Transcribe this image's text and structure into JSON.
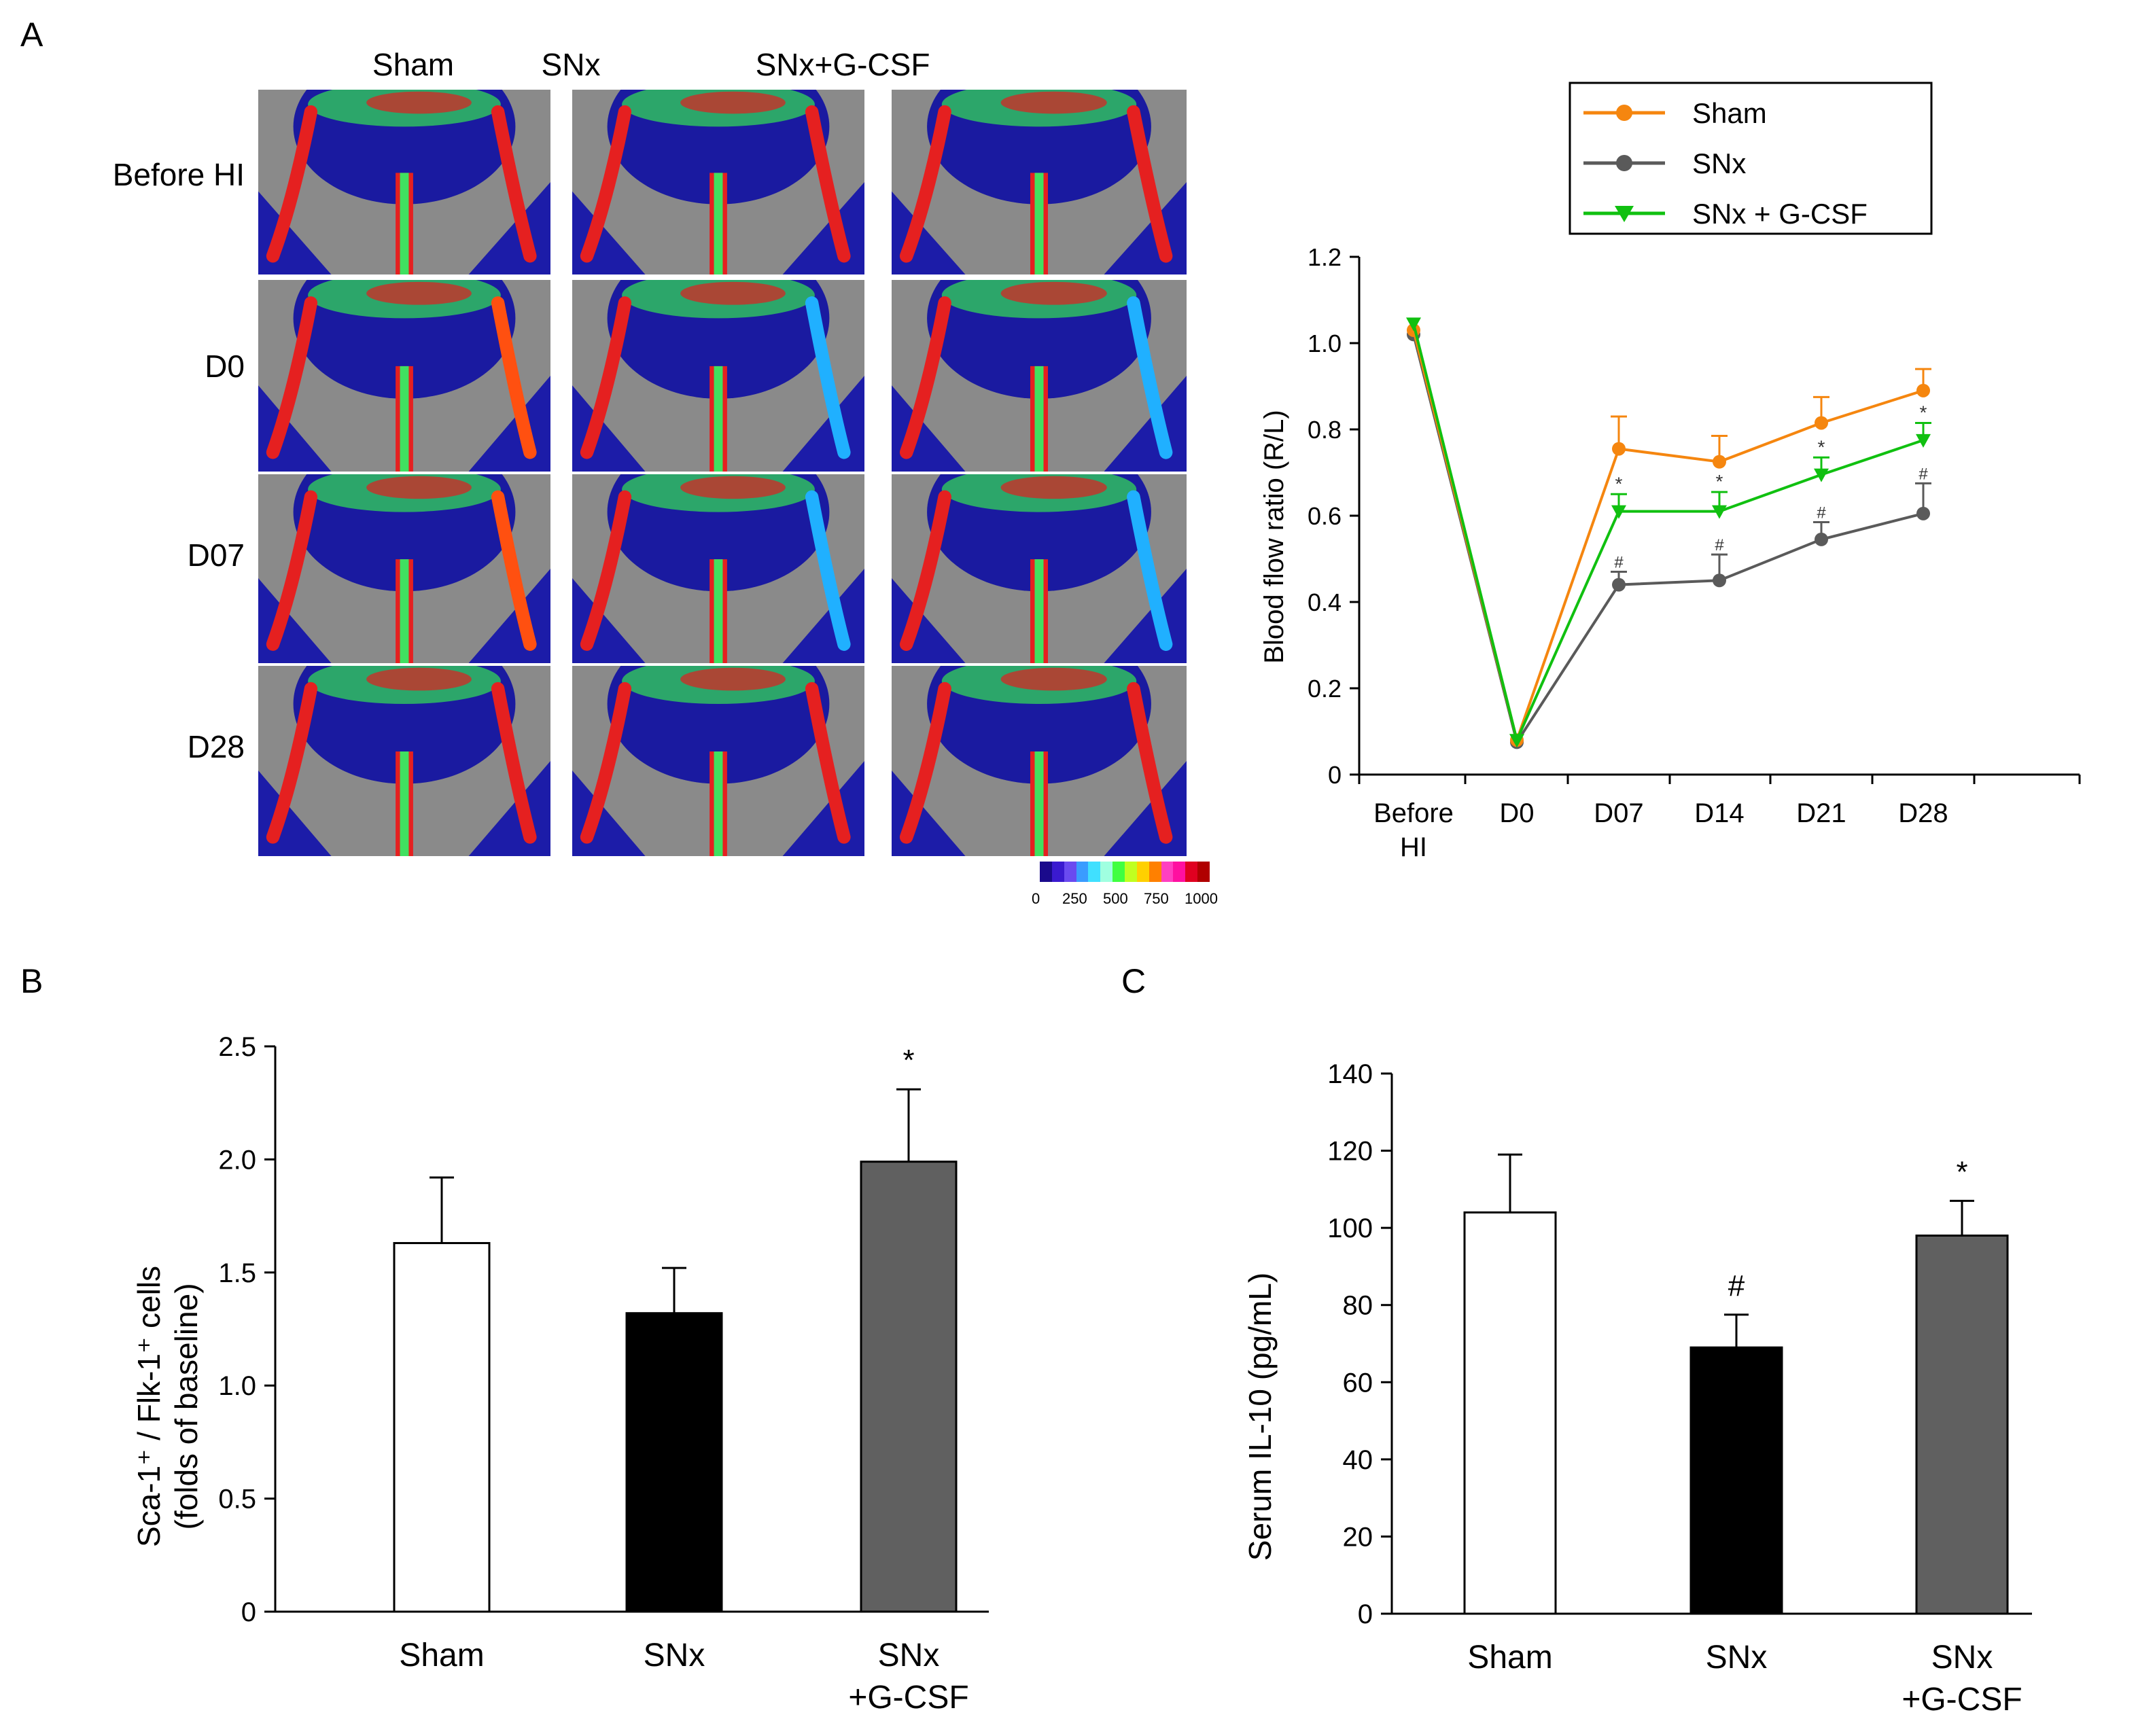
{
  "panels": {
    "a": "A",
    "b": "B",
    "c": "C"
  },
  "panel_a": {
    "columns": [
      "Sham",
      "SNx",
      "SNx+G-CSF"
    ],
    "rows": [
      "Before HI",
      "D0",
      "D07",
      "D28"
    ],
    "colorbar": {
      "ticks": [
        "0",
        "250",
        "500",
        "750",
        "1000"
      ],
      "colors": [
        "#1a0a8c",
        "#3a1ad0",
        "#6a4af0",
        "#3a9cff",
        "#40e0ff",
        "#a0ffe0",
        "#40ff40",
        "#c0ff20",
        "#ffd000",
        "#ff8000",
        "#ff40c0",
        "#ff10a0",
        "#e00020",
        "#b00000"
      ]
    }
  },
  "colors": {
    "sham": "#f5860f",
    "snx": "#5a5a5a",
    "gcsf": "#10c010",
    "bar_snx": "#000000",
    "bar_gcsf": "#606060"
  },
  "chart_data": [
    {
      "type": "line",
      "ylabel": "Blood flow ratio (R/L)",
      "categories": [
        "Before HI",
        "D0",
        "D07",
        "D14",
        "D21",
        "D28"
      ],
      "ylim": [
        0,
        1.2
      ],
      "yticks": [
        "0",
        "0.2",
        "0.4",
        "0.6",
        "0.8",
        "1.0",
        "1.2"
      ],
      "legend": [
        "Sham",
        "SNx",
        "SNx + G-CSF"
      ],
      "legend_position": "top",
      "series": [
        {
          "name": "Sham",
          "values": [
            1.03,
            0.08,
            0.755,
            0.725,
            0.815,
            0.89
          ],
          "err": [
            0,
            0,
            0.075,
            0.06,
            0.06,
            0.05
          ],
          "marks": [
            "",
            "",
            "",
            "",
            "",
            ""
          ]
        },
        {
          "name": "SNx",
          "values": [
            1.02,
            0.075,
            0.44,
            0.45,
            0.545,
            0.605
          ],
          "err": [
            0,
            0,
            0.03,
            0.06,
            0.04,
            0.07
          ],
          "marks": [
            "",
            "",
            "#",
            "#",
            "#",
            "#"
          ]
        },
        {
          "name": "SNx + G-CSF",
          "values": [
            1.045,
            0.08,
            0.61,
            0.61,
            0.695,
            0.775
          ],
          "err": [
            0,
            0,
            0.04,
            0.045,
            0.04,
            0.04
          ],
          "marks": [
            "",
            "",
            "*",
            "*",
            "*",
            "*"
          ]
        }
      ]
    },
    {
      "type": "bar",
      "ylabel_line1": "Sca-1⁺ / Flk-1⁺ cells",
      "ylabel_line2": "(folds of baseline)",
      "categories": [
        "Sham",
        "SNx",
        "SNx\n+G-CSF"
      ],
      "values": [
        1.63,
        1.32,
        1.99
      ],
      "err": [
        0.29,
        0.2,
        0.32
      ],
      "marks": [
        "",
        "",
        "*"
      ],
      "ylim": [
        0,
        2.5
      ],
      "yticks": [
        "0",
        "0.5",
        "1.0",
        "1.5",
        "2.0",
        "2.5"
      ]
    },
    {
      "type": "bar",
      "ylabel": "Serum IL-10 (pg/mL)",
      "categories": [
        "Sham",
        "SNx",
        "SNx\n+G-CSF"
      ],
      "values": [
        104,
        69,
        98
      ],
      "err": [
        15,
        8.5,
        9
      ],
      "marks": [
        "",
        "#",
        "*"
      ],
      "ylim": [
        0,
        140
      ],
      "yticks": [
        "0",
        "20",
        "40",
        "60",
        "80",
        "100",
        "120",
        "140"
      ]
    }
  ]
}
